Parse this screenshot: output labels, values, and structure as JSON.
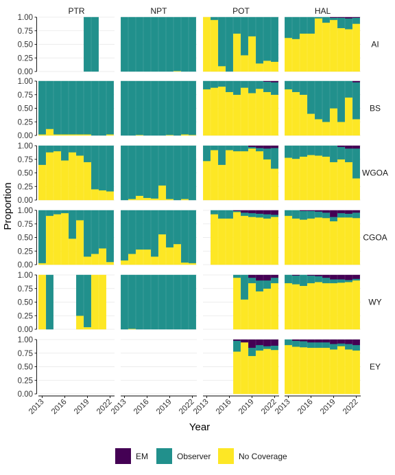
{
  "chart_data": {
    "type": "bar",
    "stacked": "proportion",
    "xlabel": "Year",
    "ylabel": "Proportion",
    "ylim": [
      0,
      1
    ],
    "yticks": [
      0.0,
      0.25,
      0.5,
      0.75,
      1.0
    ],
    "ytick_labels": [
      "0.00",
      "0.25",
      "0.50",
      "0.75",
      "1.00"
    ],
    "years": [
      2013,
      2014,
      2015,
      2016,
      2017,
      2018,
      2019,
      2020,
      2021,
      2022
    ],
    "xtick_values": [
      2013,
      2016,
      2019,
      2022
    ],
    "xtick_labels": [
      "2013",
      "2016",
      "2019",
      "2022"
    ],
    "facet_cols": [
      "PTR",
      "NPT",
      "POT",
      "HAL"
    ],
    "facet_rows": [
      "AI",
      "BS",
      "WGOA",
      "CGOA",
      "WY",
      "EY"
    ],
    "grid": true,
    "legend_position": "bottom",
    "series": [
      {
        "name": "EM",
        "color": "#440154"
      },
      {
        "name": "Observer",
        "color": "#21908C"
      },
      {
        "name": "No Coverage",
        "color": "#FDE725"
      }
    ],
    "panels": [
      {
        "row": "AI",
        "col": "PTR",
        "bars": [
          null,
          null,
          null,
          null,
          null,
          null,
          [
            0,
            1,
            0
          ],
          [
            0,
            1,
            0
          ],
          null,
          null
        ]
      },
      {
        "row": "AI",
        "col": "NPT",
        "bars": [
          [
            0,
            1,
            0
          ],
          [
            0,
            1,
            0
          ],
          [
            0,
            1,
            0
          ],
          [
            0,
            1,
            0
          ],
          [
            0,
            1,
            0
          ],
          [
            0,
            1,
            0
          ],
          [
            0,
            1,
            0
          ],
          [
            0,
            0.99,
            0.01
          ],
          [
            0,
            1,
            0
          ],
          [
            0,
            1,
            0
          ]
        ]
      },
      {
        "row": "AI",
        "col": "POT",
        "bars": [
          [
            0,
            0,
            1
          ],
          [
            0,
            0.05,
            0.95
          ],
          [
            0,
            0.9,
            0.1
          ],
          [
            0,
            1,
            0
          ],
          [
            0,
            0.3,
            0.7
          ],
          [
            0,
            0.7,
            0.3
          ],
          [
            0,
            0.35,
            0.65
          ],
          [
            0,
            0.85,
            0.15
          ],
          [
            0,
            0.8,
            0.2
          ],
          [
            0,
            0.82,
            0.18
          ]
        ]
      },
      {
        "row": "AI",
        "col": "HAL",
        "bars": [
          [
            0,
            0.38,
            0.62
          ],
          [
            0,
            0.4,
            0.6
          ],
          [
            0,
            0.3,
            0.7
          ],
          [
            0,
            0.3,
            0.7
          ],
          [
            0,
            0.02,
            0.98
          ],
          [
            0,
            0.1,
            0.9
          ],
          [
            0.01,
            0.04,
            0.95
          ],
          [
            0.01,
            0.19,
            0.8
          ],
          [
            0.02,
            0.2,
            0.78
          ],
          [
            0.01,
            0.11,
            0.88
          ]
        ]
      },
      {
        "row": "BS",
        "col": "PTR",
        "bars": [
          [
            0,
            0.98,
            0.02
          ],
          [
            0,
            0.88,
            0.12
          ],
          [
            0,
            0.98,
            0.02
          ],
          [
            0,
            0.98,
            0.02
          ],
          [
            0,
            0.98,
            0.02
          ],
          [
            0,
            0.98,
            0.02
          ],
          [
            0,
            0.98,
            0.02
          ],
          [
            0,
            1,
            0
          ],
          [
            0,
            1,
            0
          ],
          [
            0,
            0.98,
            0.02
          ]
        ]
      },
      {
        "row": "BS",
        "col": "NPT",
        "bars": [
          [
            0,
            1,
            0
          ],
          [
            0,
            1,
            0
          ],
          [
            0,
            0.99,
            0.01
          ],
          [
            0,
            1,
            0
          ],
          [
            0,
            1,
            0
          ],
          [
            0,
            1,
            0
          ],
          [
            0,
            0.99,
            0.01
          ],
          [
            0,
            1,
            0
          ],
          [
            0,
            0.98,
            0.02
          ],
          [
            0,
            0.99,
            0.01
          ]
        ]
      },
      {
        "row": "BS",
        "col": "POT",
        "bars": [
          [
            0,
            0.15,
            0.85
          ],
          [
            0,
            0.12,
            0.88
          ],
          [
            0,
            0.1,
            0.9
          ],
          [
            0,
            0.2,
            0.8
          ],
          [
            0,
            0.25,
            0.75
          ],
          [
            0,
            0.12,
            0.88
          ],
          [
            0,
            0.22,
            0.78
          ],
          [
            0,
            0.14,
            0.86
          ],
          [
            0.01,
            0.19,
            0.8
          ],
          [
            0.02,
            0.23,
            0.75
          ]
        ]
      },
      {
        "row": "BS",
        "col": "HAL",
        "bars": [
          [
            0,
            0.15,
            0.85
          ],
          [
            0,
            0.2,
            0.8
          ],
          [
            0,
            0.25,
            0.75
          ],
          [
            0,
            0.6,
            0.4
          ],
          [
            0,
            0.7,
            0.3
          ],
          [
            0,
            0.75,
            0.25
          ],
          [
            0,
            0.5,
            0.5
          ],
          [
            0,
            0.75,
            0.25
          ],
          [
            0,
            0.3,
            0.7
          ],
          [
            0.02,
            0.68,
            0.3
          ]
        ]
      },
      {
        "row": "WGOA",
        "col": "PTR",
        "bars": [
          [
            0,
            0.35,
            0.65
          ],
          [
            0,
            0.12,
            0.88
          ],
          [
            0,
            0.1,
            0.9
          ],
          [
            0,
            0.27,
            0.73
          ],
          [
            0,
            0.12,
            0.88
          ],
          [
            0,
            0.18,
            0.82
          ],
          [
            0,
            0.3,
            0.7
          ],
          [
            0,
            0.8,
            0.2
          ],
          [
            0,
            0.82,
            0.18
          ],
          [
            0,
            0.84,
            0.16
          ]
        ]
      },
      {
        "row": "WGOA",
        "col": "NPT",
        "bars": [
          [
            0,
            1,
            0
          ],
          [
            0,
            0.98,
            0.02
          ],
          [
            0,
            0.92,
            0.08
          ],
          [
            0,
            0.96,
            0.04
          ],
          [
            0,
            0.97,
            0.03
          ],
          [
            0,
            0.73,
            0.27
          ],
          [
            0,
            0.98,
            0.02
          ],
          [
            0,
            1,
            0
          ],
          [
            0,
            0.98,
            0.02
          ],
          [
            0,
            1,
            0
          ]
        ]
      },
      {
        "row": "WGOA",
        "col": "POT",
        "bars": [
          [
            0,
            0.28,
            0.72
          ],
          [
            0,
            0.08,
            0.92
          ],
          [
            0,
            0.35,
            0.65
          ],
          [
            0,
            0.08,
            0.92
          ],
          [
            0,
            0.1,
            0.9
          ],
          [
            0,
            0.1,
            0.9
          ],
          [
            0.02,
            0.03,
            0.95
          ],
          [
            0.04,
            0.06,
            0.9
          ],
          [
            0.05,
            0.2,
            0.75
          ],
          [
            0.04,
            0.38,
            0.58
          ]
        ]
      },
      {
        "row": "WGOA",
        "col": "HAL",
        "bars": [
          [
            0,
            0.22,
            0.78
          ],
          [
            0,
            0.24,
            0.76
          ],
          [
            0,
            0.2,
            0.8
          ],
          [
            0,
            0.17,
            0.83
          ],
          [
            0,
            0.18,
            0.82
          ],
          [
            0,
            0.2,
            0.8
          ],
          [
            0,
            0.3,
            0.7
          ],
          [
            0.02,
            0.23,
            0.75
          ],
          [
            0.05,
            0.25,
            0.7
          ],
          [
            0.05,
            0.55,
            0.4
          ]
        ]
      },
      {
        "row": "CGOA",
        "col": "PTR",
        "bars": [
          [
            0,
            0.97,
            0.03
          ],
          [
            0,
            0.1,
            0.9
          ],
          [
            0,
            0.07,
            0.93
          ],
          [
            0,
            0.05,
            0.95
          ],
          [
            0,
            0.52,
            0.48
          ],
          [
            0,
            0.18,
            0.82
          ],
          [
            0,
            0.85,
            0.15
          ],
          [
            0,
            0.8,
            0.2
          ],
          [
            0,
            0.7,
            0.3
          ],
          [
            0,
            0.95,
            0.05
          ]
        ]
      },
      {
        "row": "CGOA",
        "col": "NPT",
        "bars": [
          [
            0,
            0.92,
            0.08
          ],
          [
            0,
            0.8,
            0.2
          ],
          [
            0,
            0.72,
            0.28
          ],
          [
            0,
            0.72,
            0.28
          ],
          [
            0,
            0.85,
            0.15
          ],
          [
            0,
            0.44,
            0.56
          ],
          [
            0,
            0.68,
            0.32
          ],
          [
            0,
            0.62,
            0.38
          ],
          [
            0,
            0.96,
            0.04
          ],
          [
            0,
            0.97,
            0.03
          ]
        ]
      },
      {
        "row": "CGOA",
        "col": "POT",
        "bars": [
          null,
          [
            0,
            0.07,
            0.93
          ],
          [
            0,
            0.15,
            0.85
          ],
          [
            0,
            0.15,
            0.85
          ],
          [
            0.01,
            0.02,
            0.97
          ],
          [
            0.04,
            0.06,
            0.9
          ],
          [
            0.05,
            0.07,
            0.88
          ],
          [
            0.06,
            0.07,
            0.87
          ],
          [
            0.07,
            0.08,
            0.85
          ],
          [
            0.08,
            0.04,
            0.88
          ]
        ]
      },
      {
        "row": "CGOA",
        "col": "HAL",
        "bars": [
          [
            0,
            0.1,
            0.9
          ],
          [
            0,
            0.15,
            0.85
          ],
          [
            0.01,
            0.16,
            0.83
          ],
          [
            0.01,
            0.14,
            0.85
          ],
          [
            0.02,
            0.11,
            0.87
          ],
          [
            0.04,
            0.1,
            0.86
          ],
          [
            0.12,
            0.08,
            0.8
          ],
          [
            0.05,
            0.08,
            0.87
          ],
          [
            0.06,
            0.07,
            0.87
          ],
          [
            0.04,
            0.1,
            0.86
          ]
        ]
      },
      {
        "row": "WY",
        "col": "PTR",
        "bars": [
          [
            0,
            0,
            1
          ],
          [
            0,
            1,
            0
          ],
          null,
          null,
          null,
          [
            0,
            0.75,
            0.25
          ],
          [
            0,
            0.96,
            0.04
          ],
          [
            0,
            0,
            1
          ],
          [
            0,
            0,
            1
          ],
          null
        ]
      },
      {
        "row": "WY",
        "col": "NPT",
        "bars": [
          [
            0,
            1,
            0
          ],
          [
            0,
            0.99,
            0.01
          ],
          [
            0,
            1,
            0
          ],
          [
            0,
            1,
            0
          ],
          [
            0,
            1,
            0
          ],
          [
            0,
            1,
            0
          ],
          [
            0,
            1,
            0
          ],
          [
            0,
            1,
            0
          ],
          [
            0,
            1,
            0
          ],
          [
            0,
            1,
            0
          ]
        ]
      },
      {
        "row": "WY",
        "col": "POT",
        "bars": [
          null,
          null,
          null,
          null,
          [
            0,
            0.05,
            0.95
          ],
          [
            0,
            0.45,
            0.55
          ],
          [
            0.05,
            0.1,
            0.85
          ],
          [
            0.1,
            0.2,
            0.7
          ],
          [
            0.1,
            0.15,
            0.75
          ],
          [
            0.05,
            0.1,
            0.85
          ]
        ]
      },
      {
        "row": "WY",
        "col": "HAL",
        "bars": [
          [
            0,
            0.15,
            0.85
          ],
          [
            0.01,
            0.16,
            0.83
          ],
          [
            0,
            0.2,
            0.8
          ],
          [
            0.01,
            0.14,
            0.85
          ],
          [
            0.02,
            0.11,
            0.87
          ],
          [
            0.05,
            0.1,
            0.85
          ],
          [
            0.08,
            0.07,
            0.85
          ],
          [
            0.08,
            0.06,
            0.86
          ],
          [
            0.09,
            0.04,
            0.87
          ],
          [
            0.07,
            0.03,
            0.9
          ]
        ]
      },
      {
        "row": "EY",
        "col": "PTR",
        "bars": [
          null,
          null,
          null,
          null,
          null,
          null,
          null,
          null,
          null,
          null
        ]
      },
      {
        "row": "EY",
        "col": "NPT",
        "bars": [
          null,
          null,
          null,
          null,
          null,
          null,
          null,
          null,
          null,
          null
        ]
      },
      {
        "row": "EY",
        "col": "POT",
        "bars": [
          null,
          null,
          null,
          null,
          [
            0.02,
            0.2,
            0.78
          ],
          [
            0.05,
            0,
            0.95
          ],
          [
            0.15,
            0.15,
            0.7
          ],
          [
            0.1,
            0.1,
            0.8
          ],
          [
            0.12,
            0.05,
            0.83
          ],
          [
            0.11,
            0.08,
            0.81
          ]
        ]
      },
      {
        "row": "EY",
        "col": "HAL",
        "bars": [
          [
            0,
            0.1,
            0.9
          ],
          [
            0.02,
            0.11,
            0.87
          ],
          [
            0.03,
            0.11,
            0.86
          ],
          [
            0.05,
            0.1,
            0.85
          ],
          [
            0.05,
            0.1,
            0.85
          ],
          [
            0.05,
            0.1,
            0.85
          ],
          [
            0.08,
            0.1,
            0.82
          ],
          [
            0.07,
            0.05,
            0.88
          ],
          [
            0.08,
            0.1,
            0.82
          ],
          [
            0.1,
            0.1,
            0.8
          ]
        ]
      }
    ]
  }
}
